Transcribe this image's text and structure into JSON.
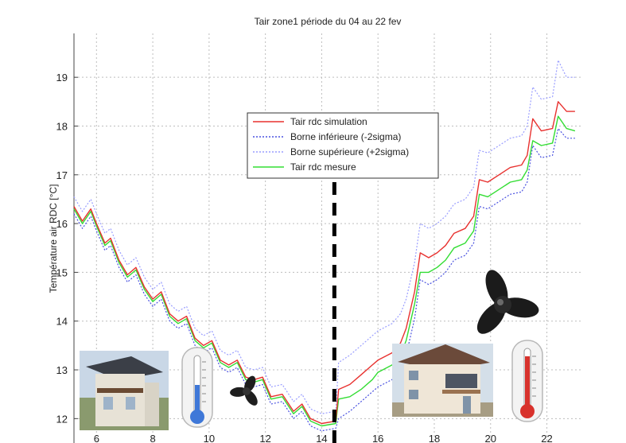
{
  "chart_data": {
    "type": "line",
    "title": "Tair zone1 période du 04 au 22 fev",
    "xlabel": "",
    "ylabel": "Température air RDC [°C]",
    "xlim": [
      5.2,
      23.2
    ],
    "ylim": [
      11.5,
      19.9
    ],
    "xticks": [
      6,
      8,
      10,
      12,
      14,
      16,
      18,
      20,
      22
    ],
    "yticks": [
      12,
      13,
      14,
      15,
      16,
      17,
      18,
      19
    ],
    "grid": true,
    "legend_position": "top-center",
    "annotation": {
      "type": "vertical-dashed-line",
      "x": 14.45
    },
    "series": [
      {
        "name": "Tair rdc simulation",
        "color": "#e8312f",
        "style": "solid",
        "points": [
          [
            5.2,
            16.35
          ],
          [
            5.5,
            16.05
          ],
          [
            5.8,
            16.3
          ],
          [
            6.0,
            16.0
          ],
          [
            6.3,
            15.6
          ],
          [
            6.5,
            15.7
          ],
          [
            6.8,
            15.25
          ],
          [
            7.1,
            14.95
          ],
          [
            7.4,
            15.1
          ],
          [
            7.7,
            14.7
          ],
          [
            8.0,
            14.45
          ],
          [
            8.3,
            14.6
          ],
          [
            8.6,
            14.15
          ],
          [
            8.9,
            14.0
          ],
          [
            9.2,
            14.1
          ],
          [
            9.5,
            13.65
          ],
          [
            9.8,
            13.5
          ],
          [
            10.1,
            13.6
          ],
          [
            10.4,
            13.2
          ],
          [
            10.7,
            13.1
          ],
          [
            11.0,
            13.2
          ],
          [
            11.3,
            12.85
          ],
          [
            11.6,
            12.8
          ],
          [
            11.9,
            12.85
          ],
          [
            12.2,
            12.45
          ],
          [
            12.6,
            12.5
          ],
          [
            13.0,
            12.15
          ],
          [
            13.3,
            12.3
          ],
          [
            13.6,
            12.0
          ],
          [
            14.0,
            11.9
          ],
          [
            14.5,
            11.95
          ],
          [
            14.6,
            12.6
          ],
          [
            15.0,
            12.7
          ],
          [
            15.4,
            12.9
          ],
          [
            15.8,
            13.1
          ],
          [
            16.0,
            13.2
          ],
          [
            16.5,
            13.35
          ],
          [
            16.8,
            13.55
          ],
          [
            17.0,
            13.85
          ],
          [
            17.3,
            14.6
          ],
          [
            17.5,
            15.4
          ],
          [
            17.8,
            15.3
          ],
          [
            18.1,
            15.4
          ],
          [
            18.4,
            15.55
          ],
          [
            18.7,
            15.8
          ],
          [
            19.1,
            15.9
          ],
          [
            19.4,
            16.15
          ],
          [
            19.6,
            16.9
          ],
          [
            19.9,
            16.85
          ],
          [
            20.3,
            17.0
          ],
          [
            20.7,
            17.15
          ],
          [
            21.1,
            17.2
          ],
          [
            21.3,
            17.4
          ],
          [
            21.5,
            18.15
          ],
          [
            21.8,
            17.9
          ],
          [
            22.2,
            17.95
          ],
          [
            22.4,
            18.5
          ],
          [
            22.7,
            18.3
          ],
          [
            23.0,
            18.3
          ]
        ]
      },
      {
        "name": "Borne inférieure (-2sigma)",
        "color": "#4a52e0",
        "style": "dotted",
        "points": [
          [
            5.2,
            16.2
          ],
          [
            5.5,
            15.9
          ],
          [
            5.8,
            16.15
          ],
          [
            6.0,
            15.85
          ],
          [
            6.3,
            15.45
          ],
          [
            6.5,
            15.55
          ],
          [
            6.8,
            15.1
          ],
          [
            7.1,
            14.8
          ],
          [
            7.4,
            14.95
          ],
          [
            7.7,
            14.55
          ],
          [
            8.0,
            14.3
          ],
          [
            8.3,
            14.45
          ],
          [
            8.6,
            14.0
          ],
          [
            8.9,
            13.85
          ],
          [
            9.2,
            13.95
          ],
          [
            9.5,
            13.5
          ],
          [
            9.8,
            13.35
          ],
          [
            10.1,
            13.45
          ],
          [
            10.4,
            13.05
          ],
          [
            10.7,
            12.95
          ],
          [
            11.0,
            13.05
          ],
          [
            11.3,
            12.7
          ],
          [
            11.6,
            12.65
          ],
          [
            11.9,
            12.7
          ],
          [
            12.2,
            12.3
          ],
          [
            12.6,
            12.35
          ],
          [
            13.0,
            12.0
          ],
          [
            13.3,
            12.15
          ],
          [
            13.6,
            11.85
          ],
          [
            14.0,
            11.75
          ],
          [
            14.5,
            11.8
          ],
          [
            14.6,
            12.0
          ],
          [
            15.0,
            12.15
          ],
          [
            15.4,
            12.35
          ],
          [
            15.8,
            12.55
          ],
          [
            16.0,
            12.65
          ],
          [
            16.5,
            12.8
          ],
          [
            16.8,
            13.0
          ],
          [
            17.0,
            13.3
          ],
          [
            17.3,
            14.05
          ],
          [
            17.5,
            14.85
          ],
          [
            17.8,
            14.75
          ],
          [
            18.1,
            14.85
          ],
          [
            18.4,
            15.0
          ],
          [
            18.7,
            15.25
          ],
          [
            19.1,
            15.35
          ],
          [
            19.4,
            15.6
          ],
          [
            19.6,
            16.35
          ],
          [
            19.9,
            16.3
          ],
          [
            20.3,
            16.45
          ],
          [
            20.7,
            16.6
          ],
          [
            21.1,
            16.65
          ],
          [
            21.3,
            16.85
          ],
          [
            21.5,
            17.6
          ],
          [
            21.8,
            17.35
          ],
          [
            22.2,
            17.4
          ],
          [
            22.4,
            17.95
          ],
          [
            22.7,
            17.75
          ],
          [
            23.0,
            17.75
          ]
        ]
      },
      {
        "name": "Borne supérieure (+2sigma)",
        "color": "#9a9eff",
        "style": "dotted",
        "points": [
          [
            5.2,
            16.55
          ],
          [
            5.5,
            16.25
          ],
          [
            5.8,
            16.5
          ],
          [
            6.0,
            16.2
          ],
          [
            6.3,
            15.8
          ],
          [
            6.5,
            15.9
          ],
          [
            6.8,
            15.45
          ],
          [
            7.1,
            15.15
          ],
          [
            7.4,
            15.3
          ],
          [
            7.7,
            14.9
          ],
          [
            8.0,
            14.65
          ],
          [
            8.3,
            14.8
          ],
          [
            8.6,
            14.35
          ],
          [
            8.9,
            14.2
          ],
          [
            9.2,
            14.3
          ],
          [
            9.5,
            13.85
          ],
          [
            9.8,
            13.7
          ],
          [
            10.1,
            13.8
          ],
          [
            10.4,
            13.4
          ],
          [
            10.7,
            13.3
          ],
          [
            11.0,
            13.4
          ],
          [
            11.3,
            13.05
          ],
          [
            11.6,
            13.0
          ],
          [
            11.9,
            13.05
          ],
          [
            12.2,
            12.65
          ],
          [
            12.6,
            12.7
          ],
          [
            13.0,
            12.35
          ],
          [
            13.3,
            12.5
          ],
          [
            13.6,
            12.2
          ],
          [
            14.0,
            12.1
          ],
          [
            14.5,
            12.15
          ],
          [
            14.6,
            13.15
          ],
          [
            15.0,
            13.3
          ],
          [
            15.4,
            13.5
          ],
          [
            15.8,
            13.7
          ],
          [
            16.0,
            13.8
          ],
          [
            16.5,
            13.95
          ],
          [
            16.8,
            14.15
          ],
          [
            17.0,
            14.45
          ],
          [
            17.3,
            15.2
          ],
          [
            17.5,
            16.0
          ],
          [
            17.8,
            15.9
          ],
          [
            18.1,
            16.0
          ],
          [
            18.4,
            16.15
          ],
          [
            18.7,
            16.4
          ],
          [
            19.1,
            16.5
          ],
          [
            19.4,
            16.75
          ],
          [
            19.6,
            17.5
          ],
          [
            19.9,
            17.45
          ],
          [
            20.3,
            17.6
          ],
          [
            20.7,
            17.75
          ],
          [
            21.1,
            17.8
          ],
          [
            21.3,
            18.0
          ],
          [
            21.5,
            18.8
          ],
          [
            21.8,
            18.55
          ],
          [
            22.2,
            18.6
          ],
          [
            22.4,
            19.35
          ],
          [
            22.7,
            19.0
          ],
          [
            23.0,
            19.0
          ]
        ]
      },
      {
        "name": "Tair rdc mesure",
        "color": "#33dd33",
        "style": "solid",
        "points": [
          [
            5.2,
            16.3
          ],
          [
            5.5,
            16.0
          ],
          [
            5.8,
            16.25
          ],
          [
            6.0,
            15.95
          ],
          [
            6.3,
            15.55
          ],
          [
            6.5,
            15.65
          ],
          [
            6.8,
            15.2
          ],
          [
            7.1,
            14.9
          ],
          [
            7.4,
            15.05
          ],
          [
            7.7,
            14.65
          ],
          [
            8.0,
            14.4
          ],
          [
            8.3,
            14.55
          ],
          [
            8.6,
            14.1
          ],
          [
            8.9,
            13.95
          ],
          [
            9.2,
            14.05
          ],
          [
            9.5,
            13.6
          ],
          [
            9.8,
            13.45
          ],
          [
            10.1,
            13.55
          ],
          [
            10.4,
            13.15
          ],
          [
            10.7,
            13.05
          ],
          [
            11.0,
            13.15
          ],
          [
            11.3,
            12.8
          ],
          [
            11.6,
            12.75
          ],
          [
            11.9,
            12.8
          ],
          [
            12.2,
            12.4
          ],
          [
            12.6,
            12.45
          ],
          [
            13.0,
            12.1
          ],
          [
            13.3,
            12.25
          ],
          [
            13.6,
            11.95
          ],
          [
            14.0,
            11.85
          ],
          [
            14.5,
            11.9
          ],
          [
            14.6,
            12.4
          ],
          [
            15.0,
            12.45
          ],
          [
            15.4,
            12.6
          ],
          [
            15.8,
            12.8
          ],
          [
            16.0,
            12.95
          ],
          [
            16.5,
            13.1
          ],
          [
            16.8,
            13.3
          ],
          [
            17.0,
            13.6
          ],
          [
            17.3,
            14.35
          ],
          [
            17.5,
            15.0
          ],
          [
            17.8,
            15.0
          ],
          [
            18.1,
            15.1
          ],
          [
            18.4,
            15.25
          ],
          [
            18.7,
            15.5
          ],
          [
            19.1,
            15.6
          ],
          [
            19.4,
            15.85
          ],
          [
            19.6,
            16.6
          ],
          [
            19.9,
            16.55
          ],
          [
            20.3,
            16.7
          ],
          [
            20.7,
            16.85
          ],
          [
            21.1,
            16.9
          ],
          [
            21.3,
            17.1
          ],
          [
            21.5,
            17.7
          ],
          [
            21.8,
            17.6
          ],
          [
            22.2,
            17.65
          ],
          [
            22.4,
            18.2
          ],
          [
            22.7,
            17.95
          ],
          [
            23.0,
            17.9
          ]
        ]
      }
    ]
  }
}
